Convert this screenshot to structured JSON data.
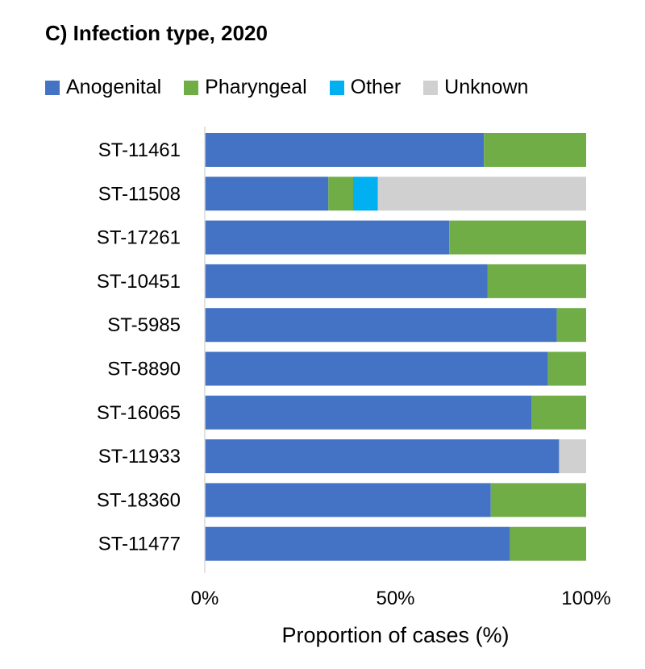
{
  "chart_data": {
    "type": "bar",
    "orientation": "horizontal",
    "stacked": true,
    "title": "C) Infection type, 2020",
    "xlabel": "Proportion of cases (%)",
    "ylabel": "",
    "xlim": [
      0,
      100
    ],
    "x_ticks": [
      "0%",
      "50%",
      "100%"
    ],
    "x_tick_values": [
      0,
      50,
      100
    ],
    "legend_position": "top",
    "grid": false,
    "categories": [
      "ST-11461",
      "ST-11508",
      "ST-17261",
      "ST-10451",
      "ST-5985",
      "ST-8890",
      "ST-16065",
      "ST-11933",
      "ST-18360",
      "ST-11477"
    ],
    "series": [
      {
        "name": "Anogenital",
        "color": "#4472C4",
        "values": [
          73.2,
          32.4,
          64.1,
          74.1,
          92.3,
          90.0,
          85.7,
          92.9,
          75.0,
          80.0
        ]
      },
      {
        "name": "Pharyngeal",
        "color": "#70AD47",
        "values": [
          26.8,
          6.5,
          35.9,
          25.9,
          7.7,
          10.0,
          14.3,
          0.0,
          25.0,
          20.0
        ]
      },
      {
        "name": "Other",
        "color": "#00B0F0",
        "values": [
          0.0,
          6.5,
          0.0,
          0.0,
          0.0,
          0.0,
          0.0,
          0.0,
          0.0,
          0.0
        ]
      },
      {
        "name": "Unknown",
        "color": "#D0D0D0",
        "values": [
          0.0,
          54.6,
          0.0,
          0.0,
          0.0,
          0.0,
          0.0,
          7.1,
          0.0,
          0.0
        ]
      }
    ]
  }
}
